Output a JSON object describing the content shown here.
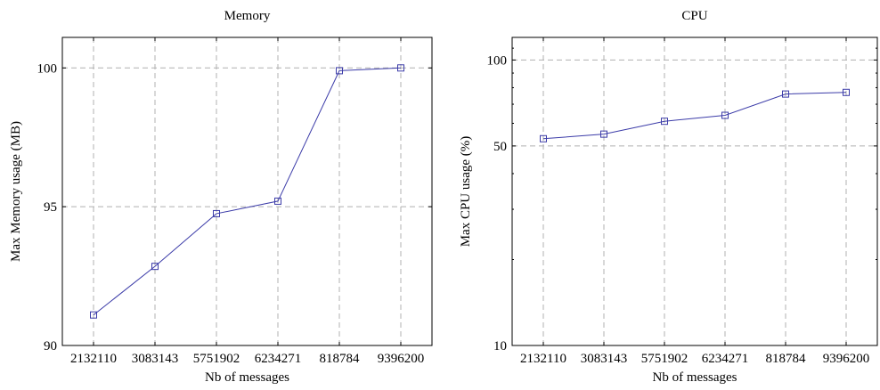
{
  "chart_data": [
    {
      "type": "line",
      "title": "Memory",
      "xlabel": "Nb of messages",
      "ylabel": "Max Memory usage (MB)",
      "categories": [
        "2132110",
        "3083143",
        "5751902",
        "6234271",
        "818784",
        "9396200"
      ],
      "series": [
        {
          "values": [
            91.1,
            92.85,
            94.75,
            95.2,
            99.9,
            100.0
          ]
        }
      ],
      "ylim": [
        90,
        101.1
      ],
      "yticks": [
        90,
        95,
        100
      ],
      "yscale": "linear",
      "grid": true,
      "marker": "square",
      "color": "#3b3ba8"
    },
    {
      "type": "line",
      "title": "CPU",
      "xlabel": "Nb of messages",
      "ylabel": "Max CPU usage (%)",
      "categories": [
        "2132110",
        "3083143",
        "5751902",
        "6234271",
        "818784",
        "9396200"
      ],
      "series": [
        {
          "values": [
            53,
            55,
            61,
            64,
            76,
            77
          ]
        }
      ],
      "ylim": [
        10,
        120
      ],
      "yticks": [
        10,
        50,
        100
      ],
      "yscale": "log",
      "grid": true,
      "marker": "square",
      "color": "#3b3ba8"
    }
  ]
}
